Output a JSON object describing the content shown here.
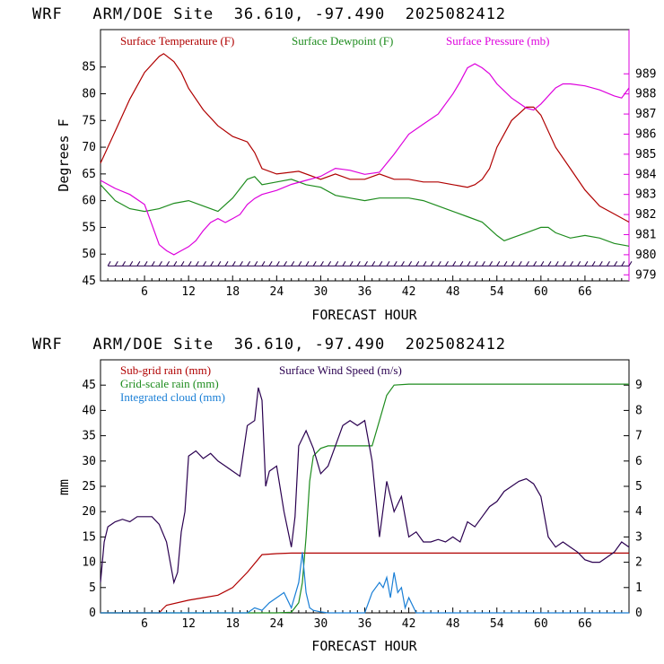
{
  "colors": {
    "temperature": "#b00000",
    "dewpoint": "#1e8c1e",
    "pressure": "#dd00dd",
    "wind_speed": "#2a0050",
    "subgrid_rain": "#b00000",
    "gridscale_rain": "#1e8c1e",
    "integrated_cloud": "#1a7fd6",
    "axis": "#000000",
    "pressure_axis": "#dd00dd"
  },
  "chart_data": [
    {
      "type": "line",
      "title": "WRF   ARM/DOE Site  36.610, -97.490  2025082412",
      "xlabel": "FORECAST HOUR",
      "ylabel": "Degrees F",
      "xlim": [
        0,
        72
      ],
      "ylim": [
        45,
        92
      ],
      "y2lim": [
        978.7,
        991.2
      ],
      "xticks": [
        "6",
        "12",
        "18",
        "24",
        "30",
        "36",
        "42",
        "48",
        "54",
        "60",
        "66"
      ],
      "yticks": [
        "45",
        "50",
        "55",
        "60",
        "65",
        "70",
        "75",
        "80",
        "85"
      ],
      "y2ticks": [
        "979",
        "980",
        "981",
        "982",
        "983",
        "984",
        "985",
        "986",
        "987",
        "988",
        "989"
      ],
      "grid": false,
      "legend_position": "top",
      "series": [
        {
          "name": "Surface Temperature (F)",
          "axis": "left",
          "x": [
            0,
            2,
            4,
            6,
            8,
            8.6,
            10,
            11,
            12,
            14,
            16,
            18,
            20,
            21,
            22,
            24,
            27,
            30,
            32,
            34,
            36,
            38,
            40,
            42,
            44,
            46,
            48,
            50,
            51,
            52,
            53,
            54,
            56,
            58,
            59,
            60,
            62,
            64,
            66,
            68,
            70,
            72
          ],
          "y": [
            67,
            73,
            79,
            84,
            87,
            87.5,
            86,
            84,
            81,
            77,
            74,
            72,
            71,
            69,
            66,
            65,
            65.5,
            64,
            65,
            64,
            64,
            65,
            64,
            64,
            63.5,
            63.5,
            63,
            62.5,
            63,
            64,
            66,
            70,
            75,
            77.5,
            77.5,
            76,
            70,
            66,
            62,
            59,
            57.5,
            56
          ]
        },
        {
          "name": "Surface Dewpoint (F)",
          "axis": "left",
          "x": [
            0,
            2,
            4,
            6,
            8,
            10,
            12,
            14,
            16,
            18,
            20,
            21,
            22,
            24,
            26,
            28,
            30,
            32,
            34,
            36,
            38,
            40,
            42,
            44,
            46,
            48,
            50,
            52,
            54,
            55,
            56,
            58,
            60,
            61,
            62,
            64,
            66,
            68,
            70,
            72
          ],
          "y": [
            63,
            60,
            58.5,
            58,
            58.5,
            59.5,
            60,
            59,
            58,
            60.5,
            64,
            64.5,
            63,
            63.5,
            64,
            63,
            62.5,
            61,
            60.5,
            60,
            60.5,
            60.5,
            60.5,
            60,
            59,
            58,
            57,
            56,
            53.5,
            52.5,
            53,
            54,
            55,
            55,
            54,
            53,
            53.5,
            53,
            52,
            51.5
          ]
        },
        {
          "name": "Surface Pressure (mb)",
          "axis": "right",
          "x": [
            0,
            2,
            4,
            6,
            7,
            8,
            9,
            10,
            11,
            12,
            13,
            14,
            15,
            16,
            17,
            18,
            19,
            20,
            21,
            22,
            24,
            26,
            28,
            29,
            30,
            32,
            34,
            36,
            38,
            40,
            41,
            42,
            44,
            46,
            48,
            49,
            50,
            51,
            52,
            53,
            54,
            56,
            58,
            59,
            60,
            62,
            63,
            64,
            66,
            68,
            70,
            71,
            72
          ],
          "y": [
            983.7,
            983.3,
            983,
            982.5,
            981.5,
            980.5,
            980.2,
            980,
            980.2,
            980.4,
            980.7,
            981.2,
            981.6,
            981.8,
            981.6,
            981.8,
            982,
            982.5,
            982.8,
            983,
            983.2,
            983.5,
            983.7,
            983.8,
            983.9,
            984.3,
            984.2,
            984.0,
            984.1,
            985,
            985.5,
            986,
            986.5,
            987,
            988,
            988.6,
            989.3,
            989.5,
            989.3,
            989.0,
            988.5,
            987.8,
            987.3,
            987.2,
            987.5,
            988.3,
            988.5,
            988.5,
            988.4,
            988.2,
            987.9,
            987.8,
            988.3
          ]
        }
      ]
    },
    {
      "type": "line",
      "title": "WRF   ARM/DOE Site  36.610, -97.490  2025082412",
      "xlabel": "FORECAST HOUR",
      "ylabel": "mm",
      "xlim": [
        0,
        72
      ],
      "ylim": [
        0,
        50
      ],
      "y2lim": [
        0,
        10
      ],
      "xticks": [
        "6",
        "12",
        "18",
        "24",
        "30",
        "36",
        "42",
        "48",
        "54",
        "60",
        "66"
      ],
      "yticks": [
        "0",
        "5",
        "10",
        "15",
        "20",
        "25",
        "30",
        "35",
        "40",
        "45"
      ],
      "y2ticks": [
        "0",
        "1",
        "2",
        "3",
        "4",
        "5",
        "6",
        "7",
        "8",
        "9"
      ],
      "grid": false,
      "legend_position": "top-left",
      "series": [
        {
          "name": "Sub-grid rain (mm)",
          "axis": "left",
          "x": [
            0,
            8,
            8.5,
            9,
            12,
            14,
            16,
            18,
            20,
            22,
            24,
            26,
            28,
            30,
            40,
            50,
            60,
            72
          ],
          "y": [
            0,
            0,
            0.8,
            1.5,
            2.5,
            3.0,
            3.5,
            5.0,
            8.0,
            11.5,
            11.7,
            11.8,
            11.8,
            11.8,
            11.8,
            11.8,
            11.8,
            11.8
          ]
        },
        {
          "name": "Grid-scale rain (mm)",
          "axis": "left",
          "x": [
            0,
            24,
            26,
            27,
            27.5,
            28,
            28.5,
            29,
            30,
            31,
            32,
            34,
            36,
            37,
            38,
            39,
            40,
            42,
            50,
            60,
            72
          ],
          "y": [
            0,
            0,
            0.1,
            2,
            6,
            15,
            26,
            31,
            32.5,
            33,
            33,
            33,
            33,
            33,
            38,
            43,
            45,
            45.2,
            45.2,
            45.2,
            45.2
          ]
        },
        {
          "name": "Integrated cloud (mm)",
          "axis": "left",
          "x": [
            0,
            20,
            21,
            22,
            23,
            24,
            25,
            26,
            27,
            27.5,
            28,
            28.5,
            29,
            30,
            31,
            32,
            36,
            37,
            38,
            38.5,
            39,
            39.5,
            40,
            40.5,
            41,
            41.5,
            42,
            43,
            72
          ],
          "y": [
            0,
            0,
            1,
            0.5,
            2,
            3,
            4,
            1,
            6,
            12,
            4,
            1,
            0.5,
            0.2,
            0,
            0,
            0,
            4,
            6,
            5,
            7,
            3,
            8,
            4,
            5,
            1,
            3,
            0,
            0
          ]
        },
        {
          "name": "Surface Wind Speed (m/s)",
          "axis": "right",
          "x": [
            0,
            0.5,
            1,
            2,
            3,
            4,
            5,
            6,
            7,
            8,
            9,
            9.5,
            10,
            10.5,
            11,
            11.5,
            12,
            13,
            14,
            15,
            16,
            17,
            18,
            19,
            20,
            21,
            21.5,
            22,
            22.5,
            23,
            24,
            25,
            26,
            26.5,
            27,
            28,
            29,
            30,
            31,
            32,
            33,
            34,
            35,
            36,
            37,
            38,
            39,
            40,
            41,
            42,
            43,
            44,
            45,
            46,
            47,
            48,
            49,
            50,
            51,
            52,
            53,
            54,
            55,
            56,
            57,
            58,
            59,
            60,
            61,
            62,
            63,
            64,
            65,
            66,
            67,
            68,
            69,
            70,
            71,
            72
          ],
          "y": [
            1.2,
            2.8,
            3.4,
            3.6,
            3.7,
            3.6,
            3.8,
            3.8,
            3.8,
            3.5,
            2.8,
            2.0,
            1.2,
            1.6,
            3.2,
            4.0,
            6.2,
            6.4,
            6.1,
            6.3,
            6.0,
            5.8,
            5.6,
            5.4,
            7.4,
            7.6,
            8.9,
            8.4,
            5.0,
            5.6,
            5.8,
            4.0,
            2.6,
            3.8,
            6.6,
            7.2,
            6.5,
            5.5,
            5.8,
            6.6,
            7.4,
            7.6,
            7.4,
            7.6,
            6.0,
            3.0,
            5.2,
            4.0,
            4.6,
            3.0,
            3.2,
            2.8,
            2.8,
            2.9,
            2.8,
            3.0,
            2.8,
            3.6,
            3.4,
            3.8,
            4.2,
            4.4,
            4.8,
            5.0,
            5.2,
            5.3,
            5.1,
            4.6,
            3.0,
            2.6,
            2.8,
            2.6,
            2.4,
            2.1,
            2.0,
            2.0,
            2.2,
            2.4,
            2.8,
            2.6
          ]
        }
      ]
    }
  ]
}
